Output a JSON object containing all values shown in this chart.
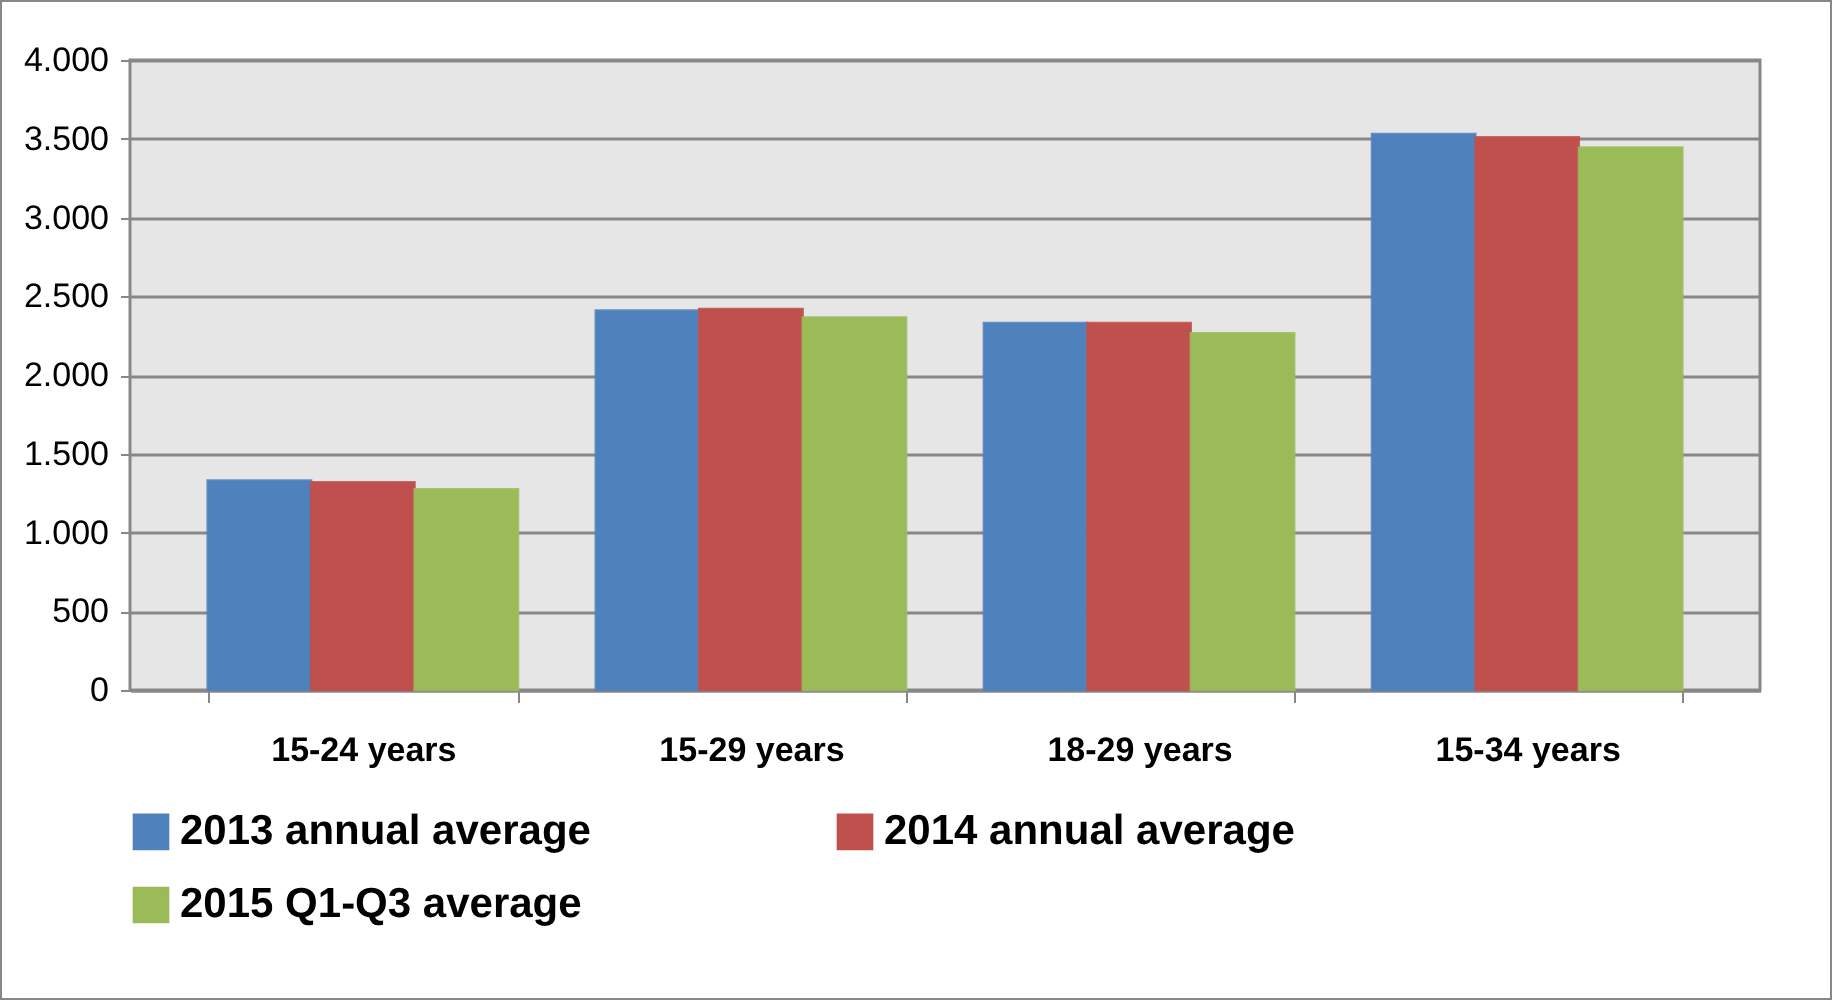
{
  "chart_data": {
    "type": "bar",
    "categories": [
      "15-24 years",
      "15-29 years",
      "18-29 years",
      "15-34 years"
    ],
    "series": [
      {
        "name": "2013 annual average",
        "color": "#4f81bd",
        "values": [
          1330,
          2410,
          2330,
          3530
        ]
      },
      {
        "name": "2014 annual average",
        "color": "#c0504d",
        "values": [
          1320,
          2420,
          2330,
          3510
        ]
      },
      {
        "name": "2015 Q1-Q3 average",
        "color": "#9bbb59",
        "values": [
          1275,
          2365,
          2265,
          3445
        ]
      }
    ],
    "ylim": [
      0,
      4000
    ],
    "yticks": [
      {
        "value": 0,
        "label": "0"
      },
      {
        "value": 500,
        "label": "500"
      },
      {
        "value": 1000,
        "label": "1.000"
      },
      {
        "value": 1500,
        "label": "1.500"
      },
      {
        "value": 2000,
        "label": "2.000"
      },
      {
        "value": 2500,
        "label": "2.500"
      },
      {
        "value": 3000,
        "label": "3.000"
      },
      {
        "value": 3500,
        "label": "3.500"
      },
      {
        "value": 4000,
        "label": "4.000"
      }
    ],
    "grid": "y",
    "legend": "bottom"
  }
}
